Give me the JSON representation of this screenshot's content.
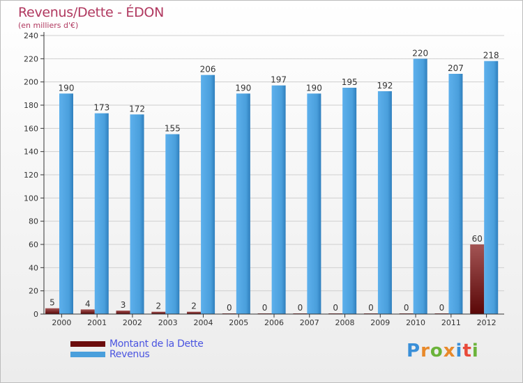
{
  "title": "Revenus/Dette - ÉDON",
  "subtitle": "(en milliers d'€)",
  "logo": "Proxiti",
  "colors": {
    "debt": "#6b0c0c",
    "revenue": "#4a9fdc",
    "axis": "#333333",
    "grid": "#cfcfcf",
    "title": "#b0385f",
    "legend_text": "#4a54e0"
  },
  "legend": [
    {
      "label": "Montant de la Dette",
      "series": "debt"
    },
    {
      "label": "Revenus",
      "series": "revenue"
    }
  ],
  "chart_data": {
    "type": "bar",
    "title": "Revenus/Dette - ÉDON",
    "ylabel": "(en milliers d'€)",
    "xlabel": "",
    "ylim": [
      0,
      240
    ],
    "ystep": 20,
    "grid": true,
    "categories": [
      "2000",
      "2001",
      "2002",
      "2003",
      "2004",
      "2005",
      "2006",
      "2007",
      "2008",
      "2009",
      "2010",
      "2011",
      "2012"
    ],
    "series": [
      {
        "name": "Montant de la Dette",
        "key": "debt",
        "values": [
          5,
          4,
          3,
          2,
          2,
          0,
          0,
          0,
          0,
          0,
          0,
          0,
          60
        ]
      },
      {
        "name": "Revenus",
        "key": "revenue",
        "values": [
          190,
          173,
          172,
          155,
          206,
          190,
          197,
          190,
          195,
          192,
          220,
          207,
          218
        ]
      }
    ]
  }
}
